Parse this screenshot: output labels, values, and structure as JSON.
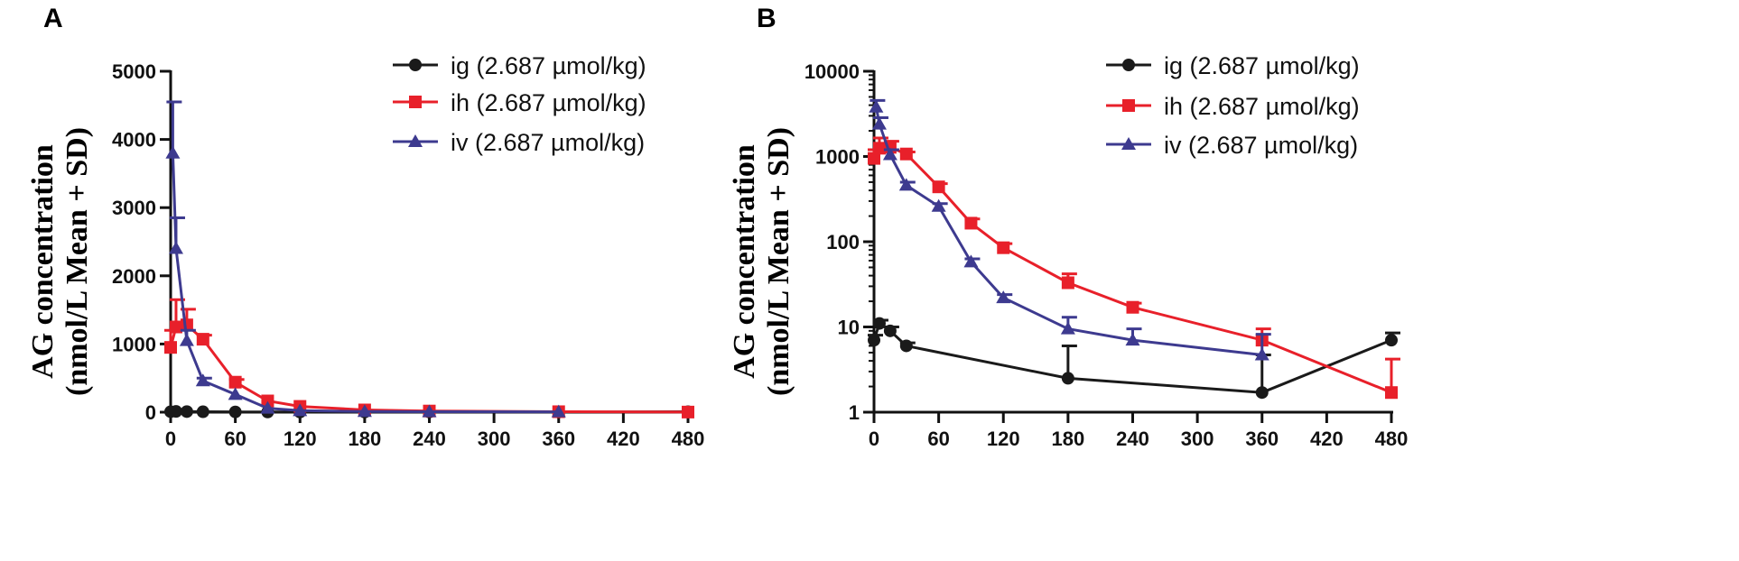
{
  "colors": {
    "ig": "#1a1a1a",
    "ih": "#e8202a",
    "iv": "#3d3a8f",
    "axis": "#111111"
  },
  "chart_data": [
    {
      "panel": "A",
      "type": "line",
      "yscale": "linear",
      "ylabel_line1": "AG concentration",
      "ylabel_line2": "(nmol/L Mean + SD)",
      "xlabel": "",
      "xlim": [
        0,
        480
      ],
      "ylim": [
        0,
        5000
      ],
      "xticks": [
        0,
        60,
        120,
        180,
        240,
        300,
        360,
        420,
        480
      ],
      "yticks": [
        0,
        1000,
        2000,
        3000,
        4000,
        5000
      ],
      "legend_position": "top-right",
      "series": [
        {
          "key": "ig",
          "name": "ig (2.687 µmol/kg)",
          "marker": "circle",
          "x": [
            0,
            5,
            15,
            30,
            60,
            90,
            120,
            180,
            240,
            360,
            480
          ],
          "y": [
            7,
            11,
            9,
            6,
            4,
            3,
            3,
            2.5,
            2,
            1.7,
            7
          ],
          "sd": [
            1,
            1,
            1,
            1,
            1,
            1,
            1,
            3.5,
            1,
            3,
            1
          ]
        },
        {
          "key": "ih",
          "name": "ih (2.687 µmol/kg)",
          "marker": "square",
          "x": [
            0,
            5,
            15,
            30,
            60,
            90,
            120,
            180,
            240,
            360,
            480
          ],
          "y": [
            950,
            1250,
            1280,
            1070,
            440,
            165,
            85,
            33,
            17,
            7,
            1.7
          ],
          "sd": [
            250,
            400,
            230,
            60,
            40,
            20,
            10,
            9,
            2,
            2.5,
            2.5
          ]
        },
        {
          "key": "iv",
          "name": "iv (2.687 µmol/kg)",
          "marker": "triangle",
          "x": [
            2,
            5,
            15,
            30,
            60,
            90,
            120,
            180,
            240,
            360
          ],
          "y": [
            3800,
            2400,
            1050,
            460,
            260,
            58,
            22,
            9.5,
            7,
            4.7
          ],
          "sd": [
            750,
            450,
            150,
            40,
            20,
            5,
            2,
            3.5,
            2.5,
            3.5
          ]
        }
      ]
    },
    {
      "panel": "B",
      "type": "line",
      "yscale": "log",
      "ylabel_line1": "AG concentration",
      "ylabel_line2": "(nmol/L Mean + SD)",
      "xlabel": "",
      "xlim": [
        0,
        480
      ],
      "ylim": [
        1,
        10000
      ],
      "xticks": [
        0,
        60,
        120,
        180,
        240,
        300,
        360,
        420,
        480
      ],
      "yticks": [
        1,
        10,
        100,
        1000,
        10000
      ],
      "legend_position": "top-right",
      "series": [
        {
          "key": "ig",
          "name": "ig (2.687 µmol/kg)",
          "marker": "circle",
          "x": [
            0,
            5,
            15,
            30,
            180,
            360,
            480
          ],
          "y": [
            7,
            11,
            9,
            6,
            2.5,
            1.7,
            7
          ],
          "sd": [
            1,
            1,
            1,
            0.5,
            3.5,
            3,
            1.5
          ]
        },
        {
          "key": "ih",
          "name": "ih (2.687 µmol/kg)",
          "marker": "square",
          "x": [
            0,
            5,
            15,
            30,
            60,
            90,
            120,
            180,
            240,
            360,
            480
          ],
          "y": [
            950,
            1250,
            1280,
            1070,
            440,
            165,
            85,
            33,
            17,
            7,
            1.7
          ],
          "sd": [
            250,
            400,
            230,
            60,
            40,
            20,
            10,
            9,
            2,
            2.5,
            2.5
          ]
        },
        {
          "key": "iv",
          "name": "iv (2.687 µmol/kg)",
          "marker": "triangle",
          "x": [
            2,
            5,
            15,
            30,
            60,
            90,
            120,
            180,
            240,
            360
          ],
          "y": [
            3800,
            2400,
            1050,
            460,
            260,
            58,
            22,
            9.5,
            7,
            4.7
          ],
          "sd": [
            750,
            450,
            150,
            40,
            20,
            5,
            2,
            3.5,
            2.5,
            3.5
          ]
        }
      ]
    }
  ]
}
